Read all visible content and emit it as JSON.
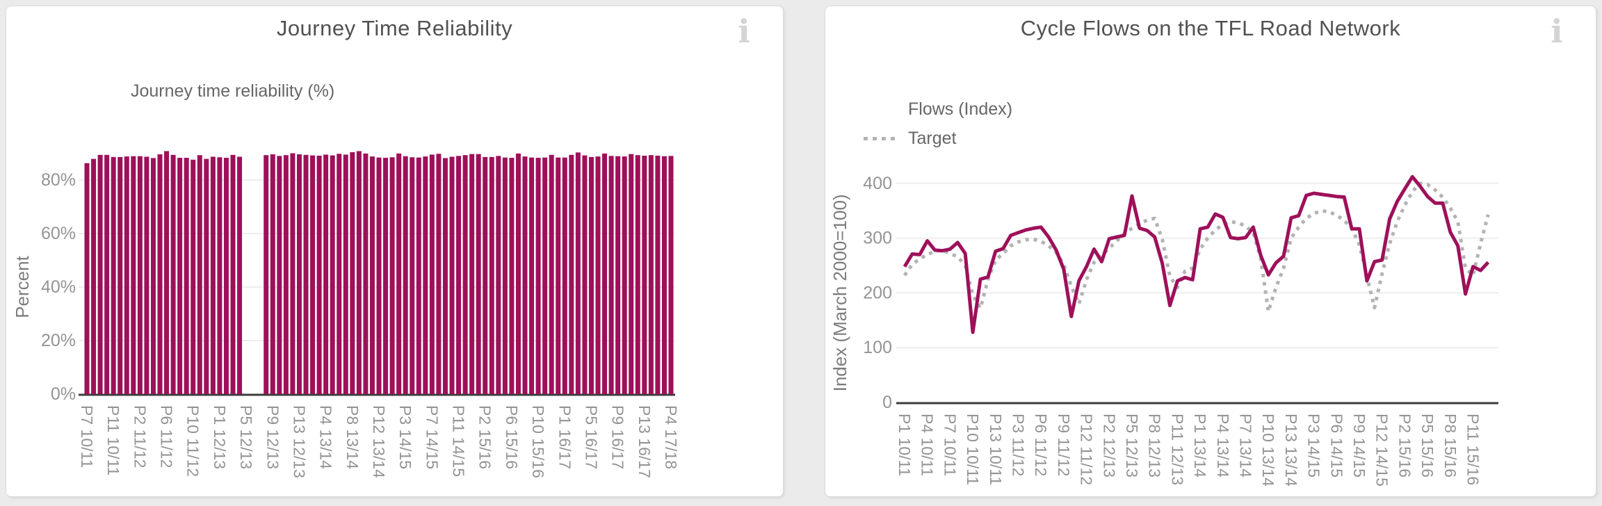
{
  "page": {
    "background": "#ebebeb"
  },
  "chart_data": [
    {
      "type": "bar",
      "title": "Journey Time Reliability",
      "info_icon_glyph": "i",
      "legend_label": "Journey time reliability (%)",
      "ylabel": "Percent",
      "xlabel": "",
      "bar_color": "#9e105a",
      "grid_color": "#ededed",
      "axis_line_color": "#3c3c3c",
      "ylim": [
        0,
        100
      ],
      "yticks": [
        0,
        20,
        40,
        60,
        80
      ],
      "ytick_format": "percent",
      "label_every": 4,
      "legend_position": "top-left",
      "grid": true,
      "categories": [
        "P7 10/11",
        "P8 10/11",
        "P9 10/11",
        "P10 10/11",
        "P11 10/11",
        "P12 10/11",
        "P13 10/11",
        "P1 11/12",
        "P2 11/12",
        "P3 11/12",
        "P4 11/12",
        "P5 11/12",
        "P6 11/12",
        "P7 11/12",
        "P8 11/12",
        "P9 11/12",
        "P10 11/12",
        "P11 11/12",
        "P12 11/12",
        "P13 11/12",
        "P1 12/13",
        "P2 12/13",
        "P3 12/13",
        "P4 12/13",
        "P5 12/13",
        "P6 12/13",
        "P7 12/13",
        "P8 12/13",
        "P9 12/13",
        "P10 12/13",
        "P11 12/13",
        "P12 12/13",
        "P13 12/13",
        "P1 13/14",
        "P2 13/14",
        "P3 13/14",
        "P4 13/14",
        "P5 13/14",
        "P6 13/14",
        "P7 13/14",
        "P8 13/14",
        "P9 13/14",
        "P10 13/14",
        "P11 13/14",
        "P12 13/14",
        "P13 13/14",
        "P1 14/15",
        "P2 14/15",
        "P3 14/15",
        "P4 14/15",
        "P5 14/15",
        "P6 14/15",
        "P7 14/15",
        "P8 14/15",
        "P9 14/15",
        "P10 14/15",
        "P11 14/15",
        "P12 14/15",
        "P13 14/15",
        "P1 15/16",
        "P2 15/16",
        "P3 15/16",
        "P4 15/16",
        "P5 15/16",
        "P6 15/16",
        "P7 15/16",
        "P8 15/16",
        "P9 15/16",
        "P10 15/16",
        "P11 15/16",
        "P12 15/16",
        "P13 15/16",
        "P1 16/17",
        "P2 16/17",
        "P3 16/17",
        "P4 16/17",
        "P5 16/17",
        "P6 16/17",
        "P7 16/17",
        "P8 16/17",
        "P9 16/17",
        "P10 16/17",
        "P11 16/17",
        "P12 16/17",
        "P13 16/17",
        "P1 17/18",
        "P2 17/18",
        "P3 17/18",
        "P4 17/18"
      ],
      "values": [
        86.3,
        87.9,
        89.4,
        89.4,
        88.6,
        88.6,
        88.8,
        88.9,
        88.9,
        88.7,
        88.2,
        89.6,
        90.8,
        89.4,
        88.3,
        88.3,
        87.6,
        89.3,
        87.9,
        88.7,
        88.5,
        88.3,
        89.4,
        88.7,
        null,
        null,
        null,
        89.3,
        89.6,
        89.0,
        89.3,
        90.0,
        89.6,
        89.4,
        89.2,
        89.1,
        89.5,
        89.2,
        89.8,
        89.5,
        90.4,
        90.8,
        89.9,
        88.8,
        88.4,
        88.3,
        88.5,
        89.9,
        88.9,
        88.5,
        88.4,
        88.8,
        89.5,
        89.8,
        88.2,
        88.7,
        89.0,
        89.3,
        89.7,
        89.7,
        88.6,
        88.6,
        89.0,
        88.4,
        88.3,
        89.9,
        88.8,
        88.4,
        88.3,
        88.4,
        89.4,
        88.4,
        88.4,
        89.4,
        90.3,
        89.2,
        88.6,
        88.8,
        89.9,
        89.0,
        88.9,
        88.8,
        89.7,
        89.3,
        89.1,
        89.3,
        89.1,
        88.9,
        89.0
      ]
    },
    {
      "type": "line",
      "title": "Cycle Flows on the TFL Road Network",
      "info_icon_glyph": "i",
      "ylabel": "Index (March 2000=100)",
      "xlabel": "",
      "grid_color": "#ededed",
      "axis_line_color": "#3c3c3c",
      "ylim": [
        0,
        430
      ],
      "yticks": [
        0,
        100,
        200,
        300,
        400
      ],
      "label_every": 3,
      "legend_position": "top-left",
      "grid": true,
      "categories": [
        "P1 10/11",
        "P2 10/11",
        "P3 10/11",
        "P4 10/11",
        "P5 10/11",
        "P6 10/11",
        "P7 10/11",
        "P8 10/11",
        "P9 10/11",
        "P10 10/11",
        "P11 10/11",
        "P12 10/11",
        "P13 10/11",
        "P1 11/12",
        "P2 11/12",
        "P3 11/12",
        "P4 11/12",
        "P5 11/12",
        "P6 11/12",
        "P7 11/12",
        "P8 11/12",
        "P9 11/12",
        "P10 11/12",
        "P11 11/12",
        "P12 11/12",
        "P13 11/12",
        "P1 12/13",
        "P2 12/13",
        "P3 12/13",
        "P4 12/13",
        "P5 12/13",
        "P6 12/13",
        "P7 12/13",
        "P8 12/13",
        "P9 12/13",
        "P10 12/13",
        "P11 12/13",
        "P12 12/13",
        "P13 12/13",
        "P1 13/14",
        "P2 13/14",
        "P3 13/14",
        "P4 13/14",
        "P5 13/14",
        "P6 13/14",
        "P7 13/14",
        "P8 13/14",
        "P9 13/14",
        "P10 13/14",
        "P11 13/14",
        "P12 13/14",
        "P13 13/14",
        "P1 14/15",
        "P2 14/15",
        "P3 14/15",
        "P4 14/15",
        "P5 14/15",
        "P6 14/15",
        "P7 14/15",
        "P8 14/15",
        "P9 14/15",
        "P10 14/15",
        "P11 14/15",
        "P12 14/15",
        "P13 14/15",
        "P1 15/16",
        "P2 15/16",
        "P3 15/16",
        "P4 15/16",
        "P5 15/16",
        "P6 15/16",
        "P7 15/16",
        "P8 15/16",
        "P9 15/16",
        "P10 15/16",
        "P11 15/16",
        "P12 15/16",
        "P13 15/16"
      ],
      "series": [
        {
          "name": "Flows (Index)",
          "color": "#9e105a",
          "style": "solid",
          "values": [
            248,
            271,
            270,
            295,
            278,
            277,
            280,
            292,
            272,
            128,
            225,
            229,
            276,
            281,
            305,
            310,
            315,
            318,
            320,
            302,
            278,
            243,
            157,
            222,
            248,
            280,
            257,
            299,
            302,
            305,
            377,
            318,
            314,
            302,
            254,
            177,
            222,
            228,
            224,
            317,
            320,
            344,
            338,
            301,
            299,
            301,
            320,
            268,
            233,
            255,
            267,
            337,
            341,
            378,
            382,
            380,
            378,
            376,
            375,
            317,
            317,
            222,
            257,
            260,
            335,
            367,
            390,
            412,
            395,
            376,
            364,
            364,
            311,
            286,
            198,
            248,
            241,
            256
          ]
        },
        {
          "name": "Target",
          "color": "#b3b3b3",
          "style": "dotted",
          "values": [
            232,
            252,
            262,
            270,
            276,
            278,
            272,
            266,
            250,
            196,
            172,
            224,
            260,
            272,
            286,
            293,
            297,
            298,
            294,
            286,
            274,
            252,
            212,
            180,
            224,
            256,
            268,
            282,
            295,
            308,
            318,
            326,
            333,
            336,
            298,
            230,
            210,
            240,
            245,
            280,
            300,
            315,
            325,
            330,
            328,
            322,
            310,
            262,
            166,
            210,
            245,
            300,
            320,
            336,
            345,
            350,
            348,
            342,
            332,
            318,
            288,
            230,
            173,
            235,
            290,
            330,
            360,
            385,
            400,
            398,
            388,
            375,
            355,
            330,
            245,
            232,
            290,
            343
          ]
        }
      ]
    }
  ]
}
